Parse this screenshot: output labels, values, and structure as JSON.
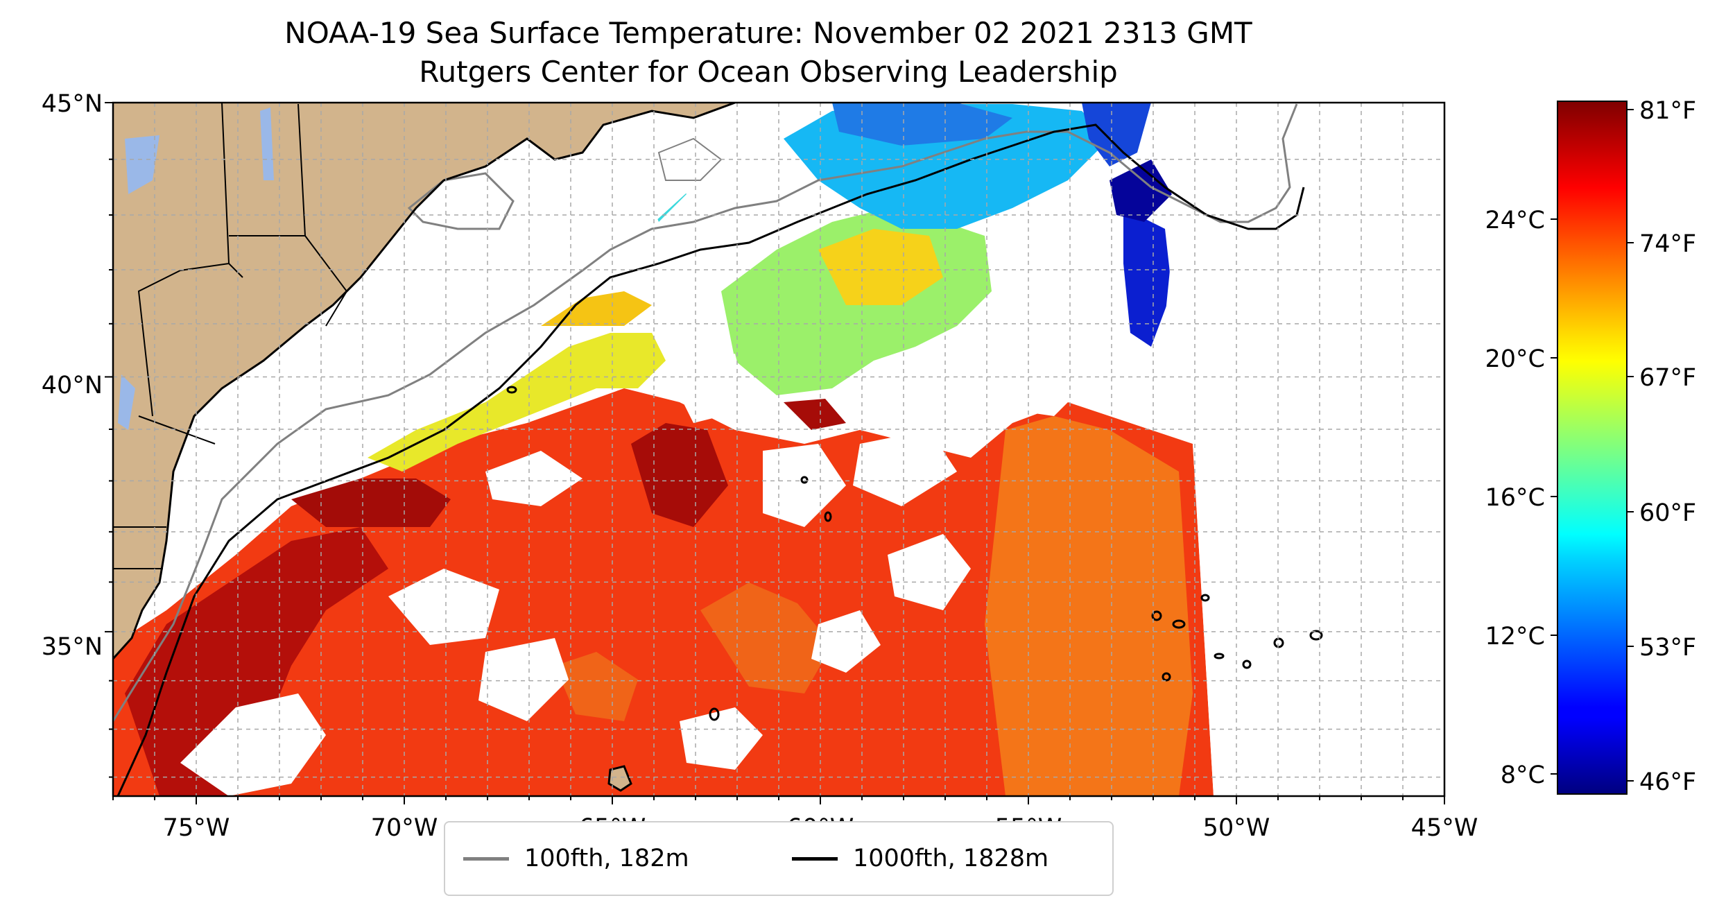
{
  "title": {
    "line1": "NOAA-19 Sea Surface Temperature: November 02 2021 2313 GMT",
    "line2": "Rutgers Center for Ocean Observing Leadership"
  },
  "map": {
    "lon_range": [
      -77,
      -45
    ],
    "lat_range": [
      31.6,
      45
    ],
    "lon_ticks": [
      "75°W",
      "70°W",
      "65°W",
      "60°W",
      "55°W",
      "50°W",
      "45°W"
    ],
    "lat_ticks": [
      "45°N",
      "40°N",
      "35°N"
    ],
    "gridlines": "dashed",
    "land_color": "#d2b48c",
    "ocean_color": "#ffffff"
  },
  "legend": {
    "items": [
      {
        "label": "100fth, 182m",
        "color": "#808080"
      },
      {
        "label": "1000fth, 1828m",
        "color": "#000000"
      }
    ]
  },
  "colorbar": {
    "colormap": "jet",
    "celsius_ticks": [
      "24°C",
      "20°C",
      "16°C",
      "12°C",
      "8°C"
    ],
    "fahrenheit_ticks": [
      "81°F",
      "74°F",
      "67°F",
      "60°F",
      "53°F",
      "46°F"
    ]
  }
}
